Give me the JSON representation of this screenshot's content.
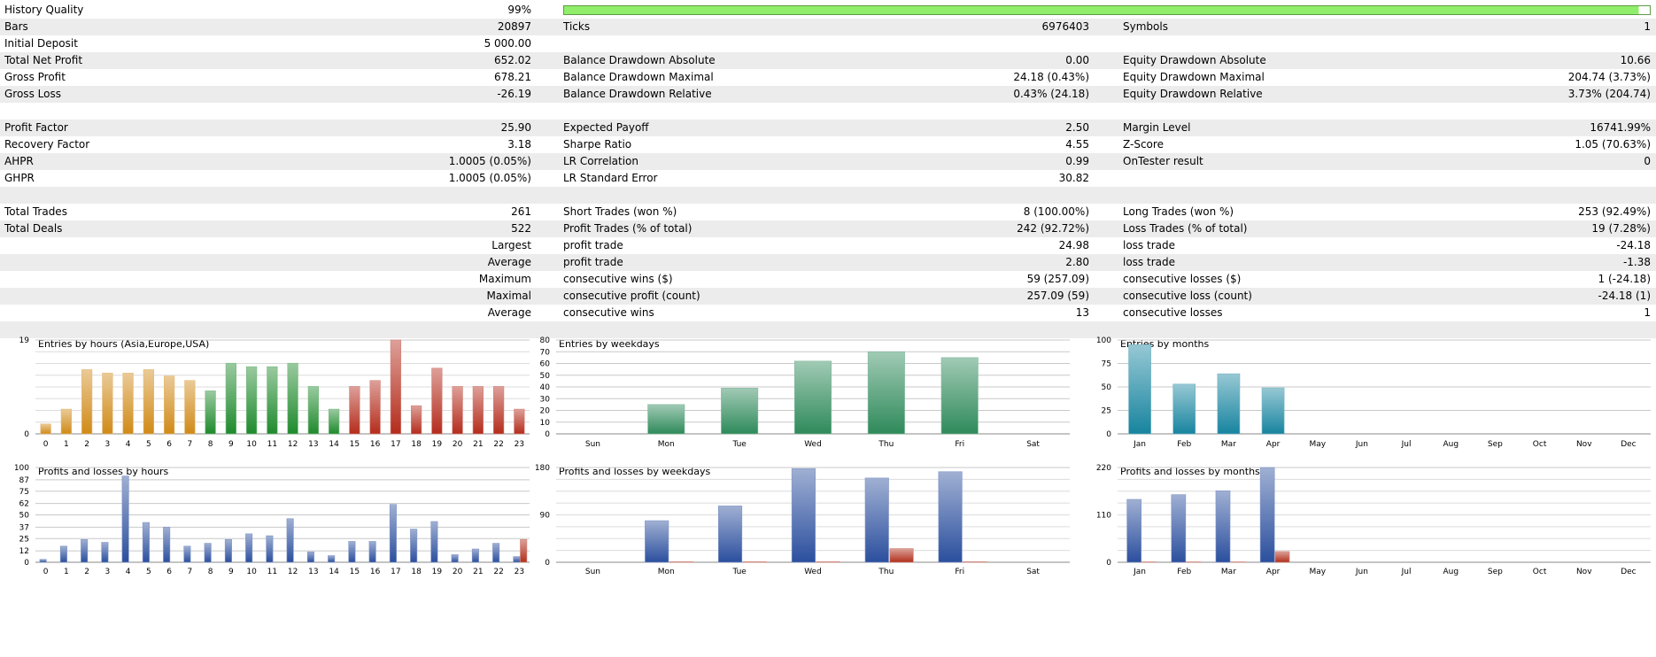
{
  "colors": {
    "quality_bar": "#90ee6a",
    "asia": "#d08a17",
    "europe": "#1e8a2c",
    "usa": "#b42c1c",
    "weekday": "#2e8a5a",
    "month": "#17849f",
    "profit": "#2b4f9e",
    "loss": "#b12f1c",
    "grid": "#c8c8c8"
  },
  "rows": [
    {
      "alt": false,
      "l1": "History Quality",
      "v1": "99%",
      "bar": true,
      "quality": 0.99
    },
    {
      "alt": true,
      "l1": "Bars",
      "v1": "20897",
      "l2": "Ticks",
      "v2": "6976403",
      "l3": "Symbols",
      "v3": "1"
    },
    {
      "alt": false,
      "l1": "Initial Deposit",
      "v1": "5 000.00"
    },
    {
      "alt": true,
      "l1": "Total Net Profit",
      "v1": "652.02",
      "l2": "Balance Drawdown Absolute",
      "v2": "0.00",
      "l3": "Equity Drawdown Absolute",
      "v3": "10.66"
    },
    {
      "alt": false,
      "l1": "Gross Profit",
      "v1": "678.21",
      "l2": "Balance Drawdown Maximal",
      "v2": "24.18 (0.43%)",
      "l3": "Equity Drawdown Maximal",
      "v3": "204.74 (3.73%)"
    },
    {
      "alt": true,
      "l1": "Gross Loss",
      "v1": "-26.19",
      "l2": "Balance Drawdown Relative",
      "v2": "0.43% (24.18)",
      "l3": "Equity Drawdown Relative",
      "v3": "3.73% (204.74)"
    },
    {
      "alt": false
    },
    {
      "alt": true,
      "l1": "Profit Factor",
      "v1": "25.90",
      "l2": "Expected Payoff",
      "v2": "2.50",
      "l3": "Margin Level",
      "v3": "16741.99%"
    },
    {
      "alt": false,
      "l1": "Recovery Factor",
      "v1": "3.18",
      "l2": "Sharpe Ratio",
      "v2": "4.55",
      "l3": "Z-Score",
      "v3": "1.05 (70.63%)"
    },
    {
      "alt": true,
      "l1": "AHPR",
      "v1": "1.0005 (0.05%)",
      "l2": "LR Correlation",
      "v2": "0.99",
      "l3": "OnTester result",
      "v3": "0"
    },
    {
      "alt": false,
      "l1": "GHPR",
      "v1": "1.0005 (0.05%)",
      "l2": "LR Standard Error",
      "v2": "30.82"
    },
    {
      "alt": true
    },
    {
      "alt": false,
      "l1": "Total Trades",
      "v1": "261",
      "l2": "Short Trades (won %)",
      "v2": "8 (100.00%)",
      "l3": "Long Trades (won %)",
      "v3": "253 (92.49%)"
    },
    {
      "alt": true,
      "l1": "Total Deals",
      "v1": "522",
      "l2": "Profit Trades (% of total)",
      "v2": "242 (92.72%)",
      "l3": "Loss Trades (% of total)",
      "v3": "19 (7.28%)"
    },
    {
      "alt": false,
      "v1": "Largest",
      "l2": "profit trade",
      "v2": "24.98",
      "l3": "loss trade",
      "v3": "-24.18"
    },
    {
      "alt": true,
      "v1": "Average",
      "l2": "profit trade",
      "v2": "2.80",
      "l3": "loss trade",
      "v3": "-1.38"
    },
    {
      "alt": false,
      "v1": "Maximum",
      "l2": "consecutive wins ($)",
      "v2": "59 (257.09)",
      "l3": "consecutive losses ($)",
      "v3": "1 (-24.18)"
    },
    {
      "alt": true,
      "v1": "Maximal",
      "l2": "consecutive profit (count)",
      "v2": "257.09 (59)",
      "l3": "consecutive loss (count)",
      "v3": "-24.18 (1)"
    },
    {
      "alt": false,
      "v1": "Average",
      "l2": "consecutive wins",
      "v2": "13",
      "l3": "consecutive losses",
      "v3": "1"
    },
    {
      "alt": true
    }
  ],
  "chart_data": [
    {
      "id": "entries-hours",
      "type": "bar",
      "title": "Entries by hours (Asia,Europe,USA)",
      "ylim": [
        0,
        19
      ],
      "yticks": [
        "0",
        "19"
      ],
      "categories": [
        "0",
        "1",
        "2",
        "3",
        "4",
        "5",
        "6",
        "7",
        "8",
        "9",
        "10",
        "11",
        "12",
        "13",
        "14",
        "15",
        "16",
        "17",
        "18",
        "19",
        "20",
        "21",
        "22",
        "23"
      ],
      "values": [
        2,
        5,
        13,
        12.3,
        12.3,
        13,
        11.7,
        10.8,
        8.7,
        14.3,
        13.6,
        13.6,
        14.3,
        9.6,
        5,
        9.6,
        10.8,
        19,
        5.7,
        13.3,
        9.6,
        9.6,
        9.6,
        5
      ],
      "groups": [
        "asia",
        "asia",
        "asia",
        "asia",
        "asia",
        "asia",
        "asia",
        "asia",
        "europe",
        "europe",
        "europe",
        "europe",
        "europe",
        "europe",
        "europe",
        "usa",
        "usa",
        "usa",
        "usa",
        "usa",
        "usa",
        "usa",
        "usa",
        "usa"
      ]
    },
    {
      "id": "entries-weekdays",
      "type": "bar",
      "title": "Entries by weekdays",
      "ylim": [
        0,
        80
      ],
      "yticks": [
        "0",
        "10",
        "20",
        "30",
        "40",
        "50",
        "60",
        "70",
        "80"
      ],
      "categories": [
        "Sun",
        "Mon",
        "Tue",
        "Wed",
        "Thu",
        "Fri",
        "Sat"
      ],
      "values": [
        0,
        25,
        39,
        62,
        70,
        65,
        0
      ]
    },
    {
      "id": "entries-months",
      "type": "bar",
      "title": "Entries by months",
      "ylim": [
        0,
        100
      ],
      "yticks": [
        "0",
        "25",
        "50",
        "75",
        "100"
      ],
      "categories": [
        "Jan",
        "Feb",
        "Mar",
        "Apr",
        "May",
        "Jun",
        "Jul",
        "Aug",
        "Sep",
        "Oct",
        "Nov",
        "Dec"
      ],
      "values": [
        95,
        53,
        64,
        49,
        0,
        0,
        0,
        0,
        0,
        0,
        0,
        0
      ]
    },
    {
      "id": "pl-hours",
      "type": "bar",
      "title": "Profits and losses by hours",
      "ylim": [
        0,
        100
      ],
      "yticks": [
        "0",
        "12",
        "25",
        "37",
        "50",
        "62",
        "75",
        "87",
        "100"
      ],
      "categories": [
        "0",
        "1",
        "2",
        "3",
        "4",
        "5",
        "6",
        "7",
        "8",
        "9",
        "10",
        "11",
        "12",
        "13",
        "14",
        "15",
        "16",
        "17",
        "18",
        "19",
        "20",
        "21",
        "22",
        "23"
      ],
      "series": [
        {
          "name": "profit",
          "values": [
            3,
            17,
            24,
            21,
            91,
            42,
            37,
            17,
            20,
            24,
            30,
            28,
            46,
            11,
            7,
            22,
            22,
            61,
            35,
            43,
            8,
            14,
            20,
            6
          ]
        },
        {
          "name": "loss",
          "values": [
            0,
            0,
            0,
            0,
            0,
            0,
            0,
            0,
            0,
            0,
            0,
            0,
            0,
            0,
            0,
            0,
            0,
            0,
            0,
            0,
            0,
            0,
            0,
            24
          ]
        }
      ]
    },
    {
      "id": "pl-weekdays",
      "type": "bar",
      "title": "Profits and losses by weekdays",
      "ylim": [
        0,
        180
      ],
      "yticks": [
        "0",
        "90",
        "180"
      ],
      "categories": [
        "Sun",
        "Mon",
        "Tue",
        "Wed",
        "Thu",
        "Fri",
        "Sat"
      ],
      "series": [
        {
          "name": "profit",
          "values": [
            0,
            79,
            107,
            178,
            160,
            172,
            0
          ]
        },
        {
          "name": "loss",
          "values": [
            0,
            1,
            1,
            1,
            26,
            1,
            0
          ]
        }
      ]
    },
    {
      "id": "pl-months",
      "type": "bar",
      "title": "Profits and losses by months",
      "ylim": [
        0,
        220
      ],
      "yticks": [
        "0",
        "110",
        "220"
      ],
      "categories": [
        "Jan",
        "Feb",
        "Mar",
        "Apr",
        "May",
        "Jun",
        "Jul",
        "Aug",
        "Sep",
        "Oct",
        "Nov",
        "Dec"
      ],
      "series": [
        {
          "name": "profit",
          "values": [
            146,
            157,
            166,
            220,
            0,
            0,
            0,
            0,
            0,
            0,
            0,
            0
          ]
        },
        {
          "name": "loss",
          "values": [
            1,
            1,
            1,
            25,
            0,
            0,
            0,
            0,
            0,
            0,
            0,
            0
          ]
        }
      ]
    }
  ]
}
